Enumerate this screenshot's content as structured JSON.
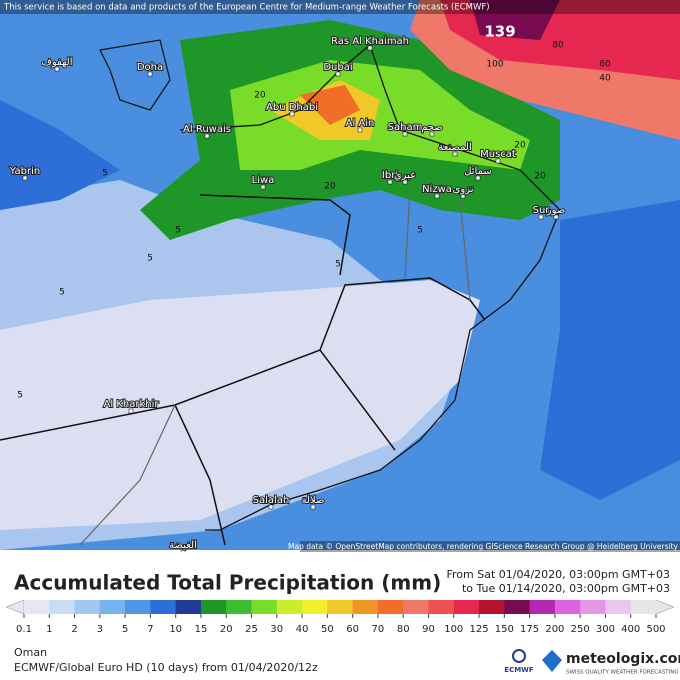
{
  "map": {
    "notice": "This service is based on data and products of the European Centre for Medium-range Weather Forecasts (ECMWF)",
    "attribution": "Map data © OpenStreetMap contributors, rendering GIScience Research Group @ Heidelberg University",
    "cities": [
      "Doha",
      "Ras Al Khaimah",
      "Dubai",
      "Abu Dhabi",
      "Al Ain",
      "Al Ruwais",
      "Yabrin",
      "Liwa",
      "Saham",
      "Muscat",
      "Ibri",
      "Nizwa",
      "Sur",
      "Al Kharkhir",
      "Salalah",
      "الهفوف",
      "صحم",
      "المصنعة",
      "عبري",
      "نزوى",
      "سمائل",
      "صور",
      "صلالة",
      "الغيضة"
    ],
    "contour_labels": [
      "139",
      "100",
      "80",
      "60",
      "40",
      "20",
      "20",
      "20",
      "20",
      "5",
      "5",
      "5",
      "5",
      "5",
      "5",
      "5"
    ]
  },
  "legend": {
    "title": "Accumulated Total Precipitation (mm)",
    "from": "From Sat 01/04/2020, 03:00pm GMT+03",
    "to": "to Tue 01/14/2020, 03:00pm GMT+03",
    "labels": [
      "0.1",
      "1",
      "2",
      "3",
      "5",
      "7",
      "10",
      "15",
      "20",
      "25",
      "30",
      "40",
      "50",
      "60",
      "70",
      "80",
      "90",
      "100",
      "125",
      "150",
      "175",
      "200",
      "250",
      "300",
      "400",
      "500"
    ],
    "colors": [
      "#e6e6f5",
      "#c8dcf5",
      "#a0c8f0",
      "#78b4ec",
      "#5096e6",
      "#2d6ed7",
      "#1e3c96",
      "#1e9628",
      "#3cbe32",
      "#78dc28",
      "#c8f028",
      "#f0f028",
      "#f0c828",
      "#f09628",
      "#f06e28",
      "#f07868",
      "#f05050",
      "#e62850",
      "#b4142d",
      "#780a50",
      "#b428b4",
      "#dc64dc",
      "#e696e6",
      "#ebc8eb",
      "#e6e6e6"
    ]
  },
  "footer": {
    "region": "Oman",
    "model": "ECMWF/Global Euro HD (10 days)  from  01/04/2020/12z",
    "ecmwf": "ECMWF",
    "brand": "meteologix.com",
    "tagline": "SWISS QUALITY WEATHER FORECASTING"
  }
}
